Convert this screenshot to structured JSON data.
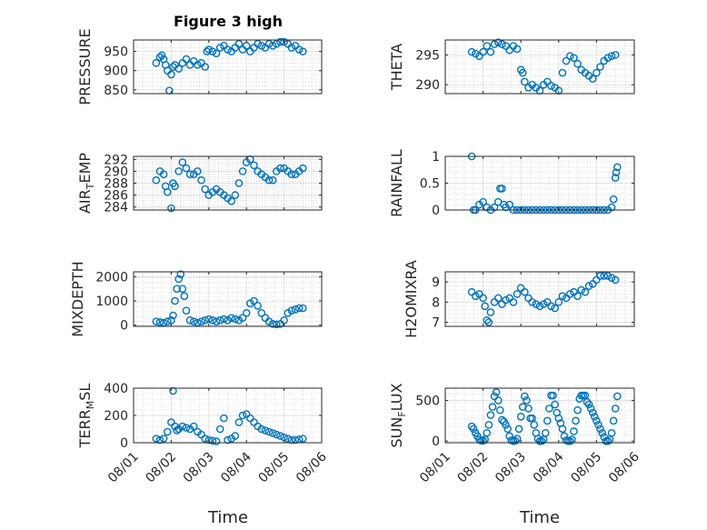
{
  "figure_title": "Figure 3 high",
  "xlabel": "Time",
  "x_ticks": [
    "08/01",
    "08/02",
    "08/03",
    "08/04",
    "08/05",
    "08/06"
  ],
  "marker_color": "#0072BD",
  "chart_data": [
    {
      "type": "scatter",
      "name_label": "PRESSURE",
      "label_main": "PRESSURE",
      "label_sub": "",
      "label_tail": "",
      "ylim": [
        840,
        980
      ],
      "yticks": [
        850,
        900,
        950
      ],
      "ytick_labels": [
        "850",
        "900",
        "950"
      ],
      "x": [
        1.6,
        1.7,
        1.75,
        1.8,
        1.85,
        1.9,
        1.95,
        2.0,
        2.05,
        2.1,
        2.2,
        2.3,
        2.4,
        2.5,
        2.6,
        2.7,
        2.8,
        2.9,
        2.95,
        3.0,
        3.1,
        3.2,
        3.3,
        3.4,
        3.5,
        3.6,
        3.7,
        3.8,
        3.9,
        4.0,
        4.1,
        4.2,
        4.3,
        4.4,
        4.5,
        4.6,
        4.7,
        4.8,
        4.9,
        5.0,
        5.1,
        5.2,
        5.3,
        5.4,
        5.5
      ],
      "y": [
        920,
        935,
        940,
        930,
        915,
        900,
        848,
        890,
        910,
        915,
        905,
        920,
        930,
        915,
        925,
        915,
        920,
        910,
        950,
        955,
        950,
        945,
        960,
        965,
        955,
        950,
        960,
        970,
        955,
        965,
        950,
        960,
        970,
        965,
        960,
        970,
        965,
        970,
        975,
        975,
        970,
        960,
        965,
        955,
        950
      ]
    },
    {
      "type": "scatter",
      "name_label": "THETA",
      "label_main": "THETA",
      "label_sub": "",
      "label_tail": "",
      "ylim": [
        288.5,
        297.5
      ],
      "yticks": [
        290,
        295
      ],
      "ytick_labels": [
        "290",
        "295"
      ],
      "x": [
        1.7,
        1.8,
        1.9,
        2.0,
        2.1,
        2.2,
        2.3,
        2.4,
        2.5,
        2.6,
        2.7,
        2.8,
        2.9,
        3.0,
        3.05,
        3.1,
        3.2,
        3.3,
        3.4,
        3.5,
        3.6,
        3.7,
        3.8,
        3.9,
        4.0,
        4.1,
        4.2,
        4.3,
        4.4,
        4.5,
        4.6,
        4.7,
        4.8,
        4.9,
        5.0,
        5.1,
        5.2,
        5.3,
        5.4,
        5.5
      ],
      "y": [
        295.5,
        295.2,
        294.8,
        295.5,
        296.5,
        295.5,
        296.8,
        297.1,
        296.8,
        296.5,
        295.8,
        296.5,
        296,
        292.5,
        292,
        290.5,
        289.5,
        290,
        289.5,
        289,
        290,
        290.5,
        289.8,
        289.5,
        289,
        292,
        294,
        294.8,
        294.5,
        293.5,
        292.5,
        292,
        291.5,
        291,
        292,
        293,
        294,
        294.5,
        294.8,
        295
      ]
    },
    {
      "type": "scatter",
      "name_label": "AIR_TEMP",
      "label_main": "AIR",
      "label_sub": "T",
      "label_tail": "EMP",
      "ylim": [
        283.5,
        292.5
      ],
      "yticks": [
        284,
        286,
        288,
        290,
        292
      ],
      "ytick_labels": [
        "284",
        "286",
        "288",
        "290",
        "292"
      ],
      "x": [
        1.6,
        1.7,
        1.8,
        1.85,
        1.9,
        2.0,
        2.05,
        2.1,
        2.2,
        2.3,
        2.4,
        2.5,
        2.6,
        2.7,
        2.8,
        2.9,
        3.0,
        3.1,
        3.2,
        3.3,
        3.4,
        3.5,
        3.6,
        3.7,
        3.8,
        3.9,
        4.0,
        4.1,
        4.2,
        4.3,
        4.4,
        4.5,
        4.6,
        4.7,
        4.8,
        4.9,
        5.0,
        5.1,
        5.2,
        5.3,
        5.4,
        5.5
      ],
      "y": [
        288.5,
        290,
        289.5,
        287.5,
        286.5,
        283.8,
        288,
        287.5,
        290,
        291.5,
        290.5,
        289.5,
        289.5,
        290,
        288.5,
        287,
        286,
        286.5,
        287,
        286.5,
        286,
        285.5,
        285,
        286,
        288,
        290,
        291.5,
        292,
        291,
        290,
        289.5,
        289,
        288.5,
        288.5,
        290,
        290.5,
        290.5,
        290,
        289.5,
        289.5,
        290,
        290.5
      ]
    },
    {
      "type": "scatter",
      "name_label": "RAINFALL",
      "label_main": "RAINFALL",
      "label_sub": "",
      "label_tail": "",
      "ylim": [
        0,
        1
      ],
      "yticks": [
        0,
        0.5,
        1
      ],
      "ytick_labels": [
        "0",
        "0.5",
        "1"
      ],
      "x": [
        1.7,
        1.75,
        1.8,
        1.9,
        2.0,
        2.1,
        2.2,
        2.3,
        2.4,
        2.45,
        2.5,
        2.55,
        2.6,
        2.7,
        2.8,
        2.9,
        3.0,
        3.1,
        3.2,
        3.3,
        3.4,
        3.5,
        3.6,
        3.7,
        3.8,
        3.9,
        4.0,
        4.1,
        4.2,
        4.3,
        4.4,
        4.5,
        4.6,
        4.7,
        4.8,
        4.9,
        5.0,
        5.1,
        5.2,
        5.3,
        5.4,
        5.45,
        5.5,
        5.52,
        5.55
      ],
      "y": [
        1,
        0,
        0,
        0.1,
        0.15,
        0.05,
        0,
        0.05,
        0.15,
        0.4,
        0.4,
        0.1,
        0.05,
        0.1,
        0,
        0,
        0,
        0,
        0,
        0,
        0,
        0,
        0,
        0,
        0,
        0,
        0,
        0,
        0,
        0,
        0,
        0,
        0,
        0,
        0,
        0,
        0,
        0,
        0,
        0,
        0.05,
        0.2,
        0.6,
        0.7,
        0.8
      ]
    },
    {
      "type": "scatter",
      "name_label": "MIXDEPTH",
      "label_main": "MIXDEPTH",
      "label_sub": "",
      "label_tail": "",
      "ylim": [
        -50,
        2200
      ],
      "yticks": [
        0,
        1000,
        2000
      ],
      "ytick_labels": [
        "0",
        "1000",
        "2000"
      ],
      "x": [
        1.6,
        1.7,
        1.8,
        1.9,
        2.0,
        2.05,
        2.1,
        2.15,
        2.2,
        2.25,
        2.3,
        2.35,
        2.4,
        2.5,
        2.6,
        2.7,
        2.8,
        2.9,
        3.0,
        3.1,
        3.2,
        3.3,
        3.4,
        3.5,
        3.6,
        3.7,
        3.8,
        3.9,
        4.0,
        4.1,
        4.2,
        4.3,
        4.4,
        4.5,
        4.6,
        4.7,
        4.8,
        4.9,
        5.0,
        5.1,
        5.2,
        5.3,
        5.4,
        5.5
      ],
      "y": [
        150,
        120,
        100,
        150,
        200,
        400,
        1000,
        1500,
        1900,
        2100,
        1500,
        1200,
        600,
        200,
        150,
        100,
        150,
        200,
        250,
        200,
        150,
        200,
        250,
        200,
        300,
        250,
        200,
        300,
        500,
        900,
        1000,
        800,
        500,
        300,
        150,
        50,
        30,
        50,
        200,
        500,
        600,
        650,
        700,
        700
      ]
    },
    {
      "type": "scatter",
      "name_label": "H2OMIXRA",
      "label_main": "H2OMIXRA",
      "label_sub": "",
      "label_tail": "",
      "ylim": [
        6.8,
        9.5
      ],
      "yticks": [
        7,
        8,
        9
      ],
      "ytick_labels": [
        "7",
        "8",
        "9"
      ],
      "x": [
        1.7,
        1.8,
        1.9,
        2.0,
        2.05,
        2.1,
        2.15,
        2.2,
        2.3,
        2.4,
        2.5,
        2.6,
        2.7,
        2.8,
        2.9,
        3.0,
        3.1,
        3.2,
        3.3,
        3.4,
        3.5,
        3.6,
        3.7,
        3.8,
        3.9,
        4.0,
        4.1,
        4.2,
        4.3,
        4.4,
        4.5,
        4.6,
        4.7,
        4.8,
        4.9,
        5.0,
        5.1,
        5.2,
        5.3,
        5.4,
        5.5
      ],
      "y": [
        8.5,
        8.3,
        8.4,
        8.2,
        7.8,
        7.1,
        7.0,
        7.5,
        8.0,
        8.2,
        7.9,
        8.1,
        8.2,
        8.0,
        8.4,
        8.7,
        8.5,
        8.2,
        8.0,
        7.9,
        7.8,
        7.9,
        8.0,
        7.8,
        7.7,
        8.0,
        8.3,
        8.2,
        8.4,
        8.5,
        8.3,
        8.6,
        8.5,
        8.8,
        8.9,
        9.1,
        9.3,
        9.3,
        9.3,
        9.2,
        9.1
      ]
    },
    {
      "type": "scatter",
      "name_label": "TERR_MSL",
      "label_main": "TERR",
      "label_sub": "M",
      "label_tail": "SL",
      "ylim": [
        0,
        400
      ],
      "yticks": [
        0,
        200,
        400
      ],
      "ytick_labels": [
        "0",
        "200",
        "400"
      ],
      "x": [
        1.6,
        1.7,
        1.8,
        1.9,
        2.0,
        2.05,
        2.1,
        2.15,
        2.2,
        2.3,
        2.4,
        2.5,
        2.6,
        2.7,
        2.8,
        2.9,
        3.0,
        3.1,
        3.2,
        3.3,
        3.4,
        3.5,
        3.6,
        3.7,
        3.8,
        3.9,
        4.0,
        4.1,
        4.2,
        4.3,
        4.4,
        4.5,
        4.6,
        4.7,
        4.8,
        4.9,
        5.0,
        5.1,
        5.2,
        5.3,
        5.4,
        5.5
      ],
      "y": [
        30,
        20,
        30,
        80,
        150,
        380,
        120,
        90,
        100,
        120,
        110,
        100,
        120,
        80,
        60,
        30,
        20,
        15,
        10,
        100,
        180,
        20,
        30,
        50,
        150,
        200,
        210,
        180,
        150,
        120,
        100,
        90,
        80,
        70,
        60,
        50,
        40,
        30,
        20,
        20,
        25,
        30
      ]
    },
    {
      "type": "scatter",
      "name_label": "SUN_FLUX",
      "label_main": "SUN",
      "label_sub": "F",
      "label_tail": "LUX",
      "ylim": [
        -20,
        650
      ],
      "yticks": [
        0,
        500
      ],
      "ytick_labels": [
        "0",
        "500"
      ],
      "x": [
        1.7,
        1.75,
        1.8,
        1.85,
        1.9,
        1.95,
        2.0,
        2.05,
        2.1,
        2.15,
        2.2,
        2.25,
        2.3,
        2.35,
        2.4,
        2.45,
        2.5,
        2.55,
        2.6,
        2.65,
        2.7,
        2.75,
        2.8,
        2.85,
        2.9,
        2.95,
        3.0,
        3.05,
        3.1,
        3.15,
        3.2,
        3.25,
        3.3,
        3.35,
        3.4,
        3.45,
        3.5,
        3.55,
        3.6,
        3.65,
        3.7,
        3.75,
        3.8,
        3.85,
        3.9,
        3.95,
        4.0,
        4.05,
        4.1,
        4.15,
        4.2,
        4.25,
        4.3,
        4.35,
        4.4,
        4.45,
        4.5,
        4.55,
        4.6,
        4.65,
        4.7,
        4.75,
        4.8,
        4.85,
        4.9,
        4.95,
        5.0,
        5.05,
        5.1,
        5.15,
        5.2,
        5.25,
        5.3,
        5.35,
        5.4,
        5.45,
        5.5,
        5.55
      ],
      "y": [
        180,
        150,
        100,
        60,
        20,
        5,
        5,
        20,
        100,
        200,
        320,
        420,
        550,
        600,
        500,
        380,
        260,
        240,
        200,
        150,
        60,
        10,
        0,
        5,
        30,
        150,
        300,
        420,
        550,
        500,
        400,
        280,
        280,
        200,
        100,
        30,
        0,
        0,
        20,
        100,
        250,
        400,
        560,
        560,
        450,
        350,
        280,
        220,
        150,
        60,
        10,
        0,
        0,
        20,
        120,
        250,
        380,
        520,
        560,
        560,
        560,
        480,
        450,
        400,
        350,
        300,
        250,
        200,
        150,
        100,
        50,
        0,
        0,
        20,
        100,
        250,
        400,
        550
      ]
    }
  ]
}
